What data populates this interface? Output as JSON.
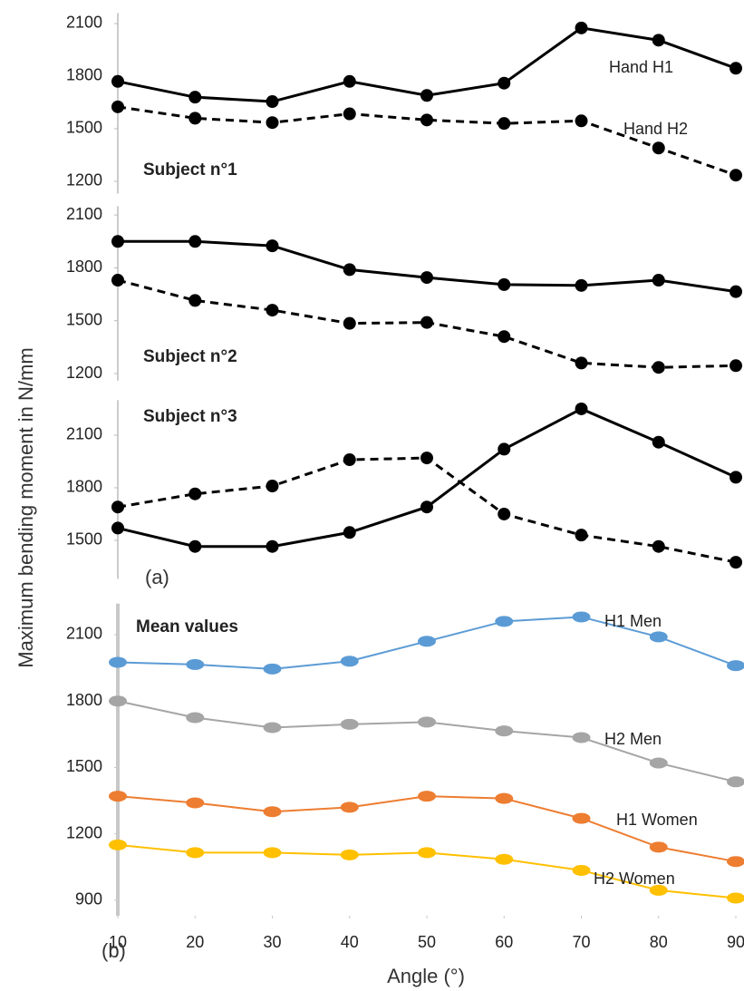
{
  "ylabel": "Maximum bending moment in N/mm",
  "xlabel": "Angle (°)",
  "chart_data": [
    {
      "type": "line",
      "title": "Subject n°1",
      "x": [
        10,
        20,
        30,
        40,
        50,
        60,
        70,
        80,
        90
      ],
      "xlim": [
        10,
        90
      ],
      "ylim": [
        1130,
        2160
      ],
      "yticks": [
        1200,
        1500,
        1800,
        2100
      ],
      "series": [
        {
          "name": "Hand H1",
          "color": "#000000",
          "style": "solid",
          "values": [
            1770,
            1680,
            1655,
            1770,
            1690,
            1760,
            2075,
            2005,
            1845
          ]
        },
        {
          "name": "Hand H2",
          "color": "#000000",
          "style": "dashed",
          "values": [
            1625,
            1560,
            1535,
            1585,
            1550,
            1530,
            1545,
            1390,
            1235
          ]
        }
      ]
    },
    {
      "type": "line",
      "title": "Subject n°2",
      "x": [
        10,
        20,
        30,
        40,
        50,
        60,
        70,
        80,
        90
      ],
      "xlim": [
        10,
        90
      ],
      "ylim": [
        1160,
        2150
      ],
      "yticks": [
        1200,
        1500,
        1800,
        2100
      ],
      "series": [
        {
          "color": "#000000",
          "style": "solid",
          "values": [
            1950,
            1950,
            1925,
            1790,
            1745,
            1705,
            1700,
            1730,
            1665
          ]
        },
        {
          "color": "#000000",
          "style": "dashed",
          "values": [
            1730,
            1615,
            1560,
            1485,
            1490,
            1410,
            1260,
            1235,
            1245
          ]
        }
      ]
    },
    {
      "type": "line",
      "title": "Subject n°3",
      "panel_label": "(a)",
      "x": [
        10,
        20,
        30,
        40,
        50,
        60,
        70,
        80,
        90
      ],
      "xlim": [
        10,
        90
      ],
      "ylim": [
        1280,
        2300
      ],
      "yticks": [
        1500,
        1800,
        2100
      ],
      "series": [
        {
          "color": "#000000",
          "style": "solid",
          "values": [
            1570,
            1465,
            1465,
            1545,
            1690,
            2020,
            2250,
            2060,
            1860
          ]
        },
        {
          "color": "#000000",
          "style": "dashed",
          "values": [
            1690,
            1765,
            1810,
            1960,
            1970,
            1650,
            1530,
            1465,
            1375
          ]
        }
      ]
    },
    {
      "type": "line",
      "title": "Mean values",
      "panel_label": "(b)",
      "x": [
        10,
        20,
        30,
        40,
        50,
        60,
        70,
        80,
        90
      ],
      "xlim": [
        10,
        90
      ],
      "xticks": [
        10,
        20,
        30,
        40,
        50,
        60,
        70,
        80,
        90
      ],
      "ylim": [
        830,
        2240
      ],
      "yticks": [
        900,
        1200,
        1500,
        1800,
        2100
      ],
      "series": [
        {
          "name": "H1 Men",
          "color": "#5b9bd5",
          "style": "solid",
          "values": [
            1975,
            1965,
            1945,
            1980,
            2070,
            2160,
            2180,
            2090,
            1960
          ]
        },
        {
          "name": "H2 Men",
          "color": "#a5a5a5",
          "style": "solid",
          "values": [
            1800,
            1725,
            1680,
            1695,
            1705,
            1665,
            1635,
            1520,
            1435
          ]
        },
        {
          "name": "H1 Women",
          "color": "#ed7d31",
          "style": "solid",
          "values": [
            1370,
            1340,
            1300,
            1320,
            1370,
            1360,
            1270,
            1140,
            1075
          ]
        },
        {
          "name": "H2 Women",
          "color": "#ffc000",
          "style": "solid",
          "values": [
            1150,
            1115,
            1115,
            1105,
            1115,
            1085,
            1035,
            945,
            910
          ]
        }
      ]
    }
  ]
}
